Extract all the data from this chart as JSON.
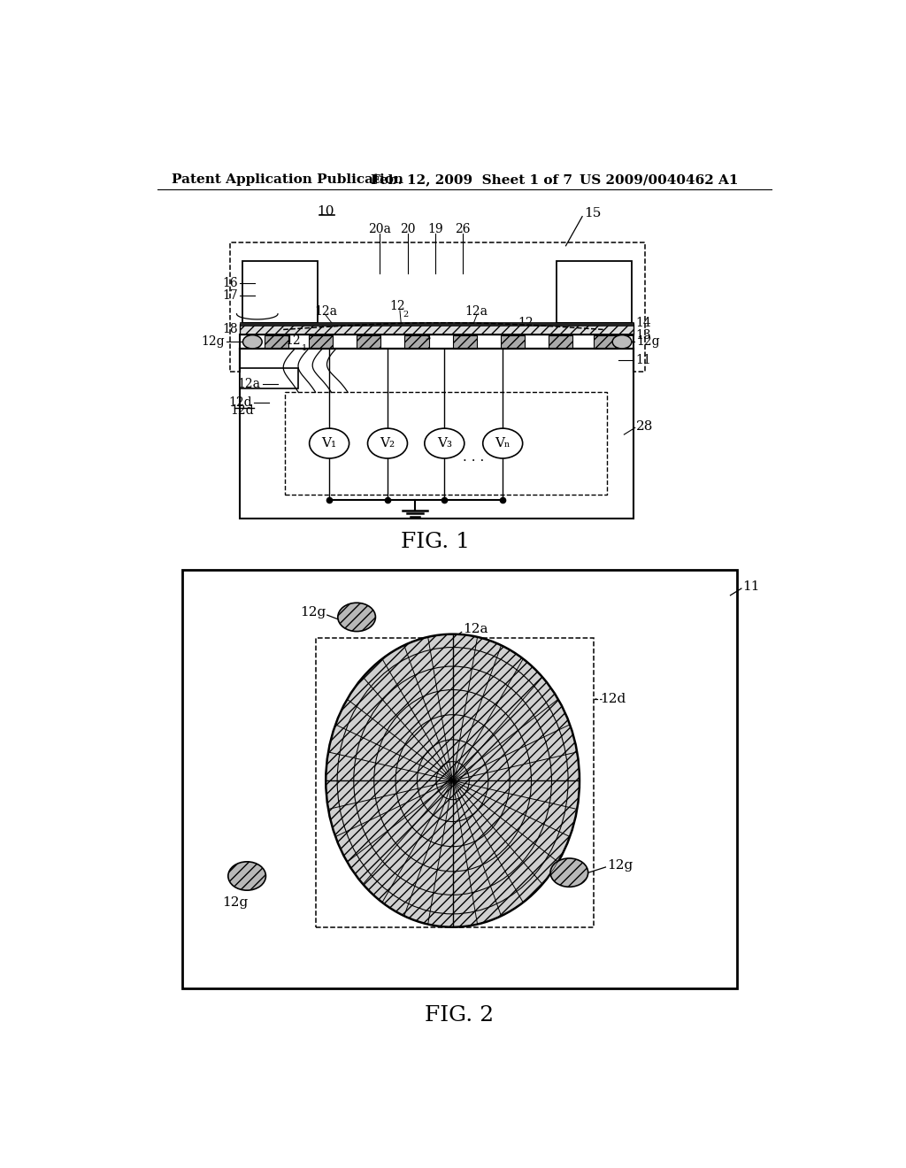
{
  "bg_color": "#ffffff",
  "header_left": "Patent Application Publication",
  "header_mid": "Feb. 12, 2009  Sheet 1 of 7",
  "header_right": "US 2009/0040462 A1",
  "fig1_label": "FIG. 1",
  "fig2_label": "FIG. 2",
  "line_color": "#000000",
  "label_fontsize": 11,
  "header_fontsize": 11,
  "fig_label_fontsize": 18
}
